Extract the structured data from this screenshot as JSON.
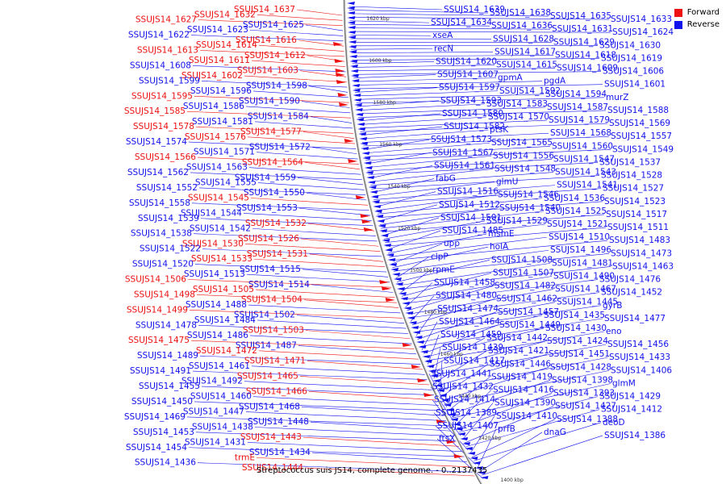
{
  "caption": "Streptococcus suis JS14, complete genome. - 0..2137435",
  "legend": {
    "forward_label": "Forward",
    "reverse_label": "Reverse",
    "forward_color": "#ee1111",
    "reverse_color": "#1111ee"
  },
  "ticks": [
    "1620 kbp",
    "1600 kbp",
    "1580 kbp",
    "1560 kbp",
    "1540 kbp",
    "1520 kbp",
    "1500 kbp",
    "1480 kbp",
    "1460 kbp",
    "1440 kbp",
    "1420 kbp",
    "1400 kbp"
  ],
  "left_labels": [
    {
      "t": "SSUJS14_1637",
      "s": "f"
    },
    {
      "t": "SSUJS14_1632",
      "s": "f"
    },
    {
      "t": "SSUJS14_1627",
      "s": "f"
    },
    {
      "t": "SSUJS14_1625",
      "s": "r"
    },
    {
      "t": "SSUJS14_1623",
      "s": "r"
    },
    {
      "t": "SSUJS14_1622",
      "s": "r"
    },
    {
      "t": "SSUJS14_1616",
      "s": "f"
    },
    {
      "t": "SSUJS14_1614",
      "s": "f"
    },
    {
      "t": "SSUJS14_1613",
      "s": "f"
    },
    {
      "t": "SSUJS14_1612",
      "s": "f"
    },
    {
      "t": "SSUJS14_1611",
      "s": "f"
    },
    {
      "t": "SSUJS14_1608",
      "s": "r"
    },
    {
      "t": "SSUJS14_1603",
      "s": "f"
    },
    {
      "t": "SSUJS14_1602",
      "s": "f"
    },
    {
      "t": "SSUJS14_1599",
      "s": "r"
    },
    {
      "t": "SSUJS14_1598",
      "s": "r"
    },
    {
      "t": "SSUJS14_1596",
      "s": "r"
    },
    {
      "t": "SSUJS14_1595",
      "s": "f"
    },
    {
      "t": "SSUJS14_1590",
      "s": "r"
    },
    {
      "t": "SSUJS14_1586",
      "s": "r"
    },
    {
      "t": "SSUJS14_1585",
      "s": "f"
    },
    {
      "t": "SSUJS14_1584",
      "s": "r"
    },
    {
      "t": "SSUJS14_1581",
      "s": "r"
    },
    {
      "t": "SSUJS14_1578",
      "s": "f"
    },
    {
      "t": "SSUJS14_1577",
      "s": "f"
    },
    {
      "t": "SSUJS14_1576",
      "s": "f"
    },
    {
      "t": "SSUJS14_1574",
      "s": "r"
    },
    {
      "t": "SSUJS14_1572",
      "s": "r"
    },
    {
      "t": "SSUJS14_1571",
      "s": "r"
    },
    {
      "t": "SSUJS14_1566",
      "s": "f"
    },
    {
      "t": "SSUJS14_1564",
      "s": "f"
    },
    {
      "t": "SSUJS14_1563",
      "s": "r"
    },
    {
      "t": "SSUJS14_1562",
      "s": "r"
    },
    {
      "t": "SSUJS14_1559",
      "s": "r"
    },
    {
      "t": "SSUJS14_1555",
      "s": "r"
    },
    {
      "t": "SSUJS14_1552",
      "s": "r"
    },
    {
      "t": "SSUJS14_1550",
      "s": "r"
    },
    {
      "t": "SSUJS14_1545",
      "s": "f"
    },
    {
      "t": "SSUJS14_1558",
      "s": "r"
    },
    {
      "t": "SSUJS14_1553",
      "s": "r"
    },
    {
      "t": "SSUJS14_1544",
      "s": "r"
    },
    {
      "t": "SSUJS14_1539",
      "s": "r"
    },
    {
      "t": "SSUJS14_1532",
      "s": "f"
    },
    {
      "t": "SSUJS14_1542",
      "s": "r"
    },
    {
      "t": "SSUJS14_1538",
      "s": "r"
    },
    {
      "t": "SSUJS14_1526",
      "s": "f"
    },
    {
      "t": "SSUJS14_1530",
      "s": "f"
    },
    {
      "t": "SSUJS14_1522",
      "s": "r"
    },
    {
      "t": "SSUJS14_1531",
      "s": "f"
    },
    {
      "t": "SSUJS14_1533",
      "s": "f"
    },
    {
      "t": "SSUJS14_1520",
      "s": "r"
    },
    {
      "t": "SSUJS14_1515",
      "s": "r"
    },
    {
      "t": "SSUJS14_1513",
      "s": "r"
    },
    {
      "t": "SSUJS14_1506",
      "s": "f"
    },
    {
      "t": "SSUJS14_1514",
      "s": "r"
    },
    {
      "t": "SSUJS14_1505",
      "s": "f"
    },
    {
      "t": "SSUJS14_1498",
      "s": "f"
    },
    {
      "t": "SSUJS14_1504",
      "s": "f"
    },
    {
      "t": "SSUJS14_1488",
      "s": "r"
    },
    {
      "t": "SSUJS14_1499",
      "s": "f"
    },
    {
      "t": "SSUJS14_1502",
      "s": "r"
    },
    {
      "t": "SSUJS14_1484",
      "s": "r"
    },
    {
      "t": "SSUJS14_1478",
      "s": "r"
    },
    {
      "t": "SSUJS14_1503",
      "s": "f"
    },
    {
      "t": "SSUJS14_1486",
      "s": "r"
    },
    {
      "t": "SSUJS14_1475",
      "s": "f"
    },
    {
      "t": "SSUJS14_1487",
      "s": "r"
    },
    {
      "t": "SSUJS14_1472",
      "s": "f"
    },
    {
      "t": "SSUJS14_1489",
      "s": "r"
    },
    {
      "t": "SSUJS14_1471",
      "s": "f"
    },
    {
      "t": "SSUJS14_1461",
      "s": "r"
    },
    {
      "t": "SSUJS14_1491",
      "s": "r"
    },
    {
      "t": "SSUJS14_1465",
      "s": "f"
    },
    {
      "t": "SSUJS14_1492",
      "s": "r"
    },
    {
      "t": "SSUJS14_1455",
      "s": "r"
    },
    {
      "t": "SSUJS14_1466",
      "s": "f"
    },
    {
      "t": "SSUJS14_1460",
      "s": "r"
    },
    {
      "t": "SSUJS14_1450",
      "s": "r"
    },
    {
      "t": "SSUJS14_1468",
      "s": "r"
    },
    {
      "t": "SSUJS14_1447",
      "s": "r"
    },
    {
      "t": "SSUJS14_1469",
      "s": "r"
    },
    {
      "t": "SSUJS14_1448",
      "s": "r"
    },
    {
      "t": "SSUJS14_1438",
      "s": "r"
    },
    {
      "t": "SSUJS14_1453",
      "s": "r"
    },
    {
      "t": "SSUJS14_1443",
      "s": "f"
    },
    {
      "t": "SSUJS14_1431",
      "s": "r"
    },
    {
      "t": "SSUJS14_1454",
      "s": "r"
    },
    {
      "t": "SSUJS14_1434",
      "s": "r"
    },
    {
      "t": "trmE",
      "s": "f"
    },
    {
      "t": "SSUJS14_1436",
      "s": "r"
    },
    {
      "t": "SSUJS14_1444",
      "s": "f"
    }
  ],
  "right_labels": [
    "SSUJS14_1639",
    "SSUJS14_1638",
    "SSUJS14_1635",
    "SSUJS14_1633",
    "SSUJS14_1634",
    "SSUJS14_1636",
    "SSUJS14_1631",
    "SSUJS14_1624",
    "xseA",
    "SSUJS14_1628",
    "SSUJS14_1629",
    "SSUJS14_1630",
    "recN",
    "SSUJS14_1617",
    "SSUJS14_1618",
    "SSUJS14_1619",
    "SSUJS14_1620",
    "SSUJS14_1615",
    "SSUJS14_1609",
    "SSUJS14_1606",
    "SSUJS14_1607",
    "gpmA",
    "pgdA",
    "SSUJS14_1601",
    "SSUJS14_1597",
    "SSUJS14_1592",
    "SSUJS14_1594",
    "murZ",
    "SSUJS14_1593",
    "SSUJS14_1583",
    "SSUJS14_1587",
    "SSUJS14_1588",
    "SSUJS14_1580",
    "SSUJS14_1570",
    "SSUJS14_1579",
    "SSUJS14_1569",
    "SSUJS14_1582",
    "ptsK",
    "SSUJS14_1568",
    "SSUJS14_1557",
    "SSUJS14_1573",
    "SSUJS14_1565",
    "SSUJS14_1560",
    "SSUJS14_1549",
    "SSUJS14_1567",
    "SSUJS14_1556",
    "SSUJS14_1547",
    "SSUJS14_1537",
    "SSUJS14_1561",
    "SSUJS14_1548",
    "SSUJS14_1543",
    "SSUJS14_1528",
    "fabG",
    "glmU",
    "SSUJS14_1541",
    "SSUJS14_1527",
    "SSUJS14_1516",
    "SSUJS14_1546",
    "SSUJS14_1536",
    "SSUJS14_1523",
    "SSUJS14_1512",
    "SSUJS14_1540",
    "SSUJS14_1525",
    "SSUJS14_1517",
    "SSUJS14_1501",
    "SSUJS14_1529",
    "SSUJS14_1521",
    "SSUJS14_1511",
    "SSUJS14_1485",
    "msmE",
    "SSUJS14_1510",
    "SSUJS14_1483",
    "upp",
    "holA",
    "SSUJS14_1496",
    "SSUJS14_1473",
    "clpP",
    "SSUJS14_1508",
    "SSUJS14_1481",
    "SSUJS14_1463",
    "rpmE",
    "SSUJS14_1507",
    "SSUJS14_1490",
    "SSUJS14_1476",
    "SSUJS14_1458",
    "SSUJS14_1482",
    "SSUJS14_1467",
    "SSUJS14_1452",
    "SSUJS14_1480",
    "SSUJS14_1462",
    "SSUJS14_1445",
    "gyrB",
    "SSUJS14_1474",
    "SSUJS14_1457",
    "SSUJS14_1435",
    "SSUJS14_1477",
    "SSUJS14_1464",
    "SSUJS14_1449",
    "SSUJS14_1430",
    "eno",
    "SSUJS14_1459",
    "SSUJS14_1442",
    "SSUJS14_1424",
    "SSUJS14_1456",
    "SSUJS14_1439",
    "SSUJS14_1421",
    "SSUJS14_1451",
    "SSUJS14_1433",
    "SSUJS14_1417",
    "SSUJS14_1446",
    "SSUJS14_1428",
    "SSUJS14_1406",
    "SSUJS14_1441",
    "SSUJS14_1419",
    "SSUJS14_1398",
    "glmM",
    "SSUJS14_1432",
    "SSUJS14_1416",
    "SSUJS14_1393",
    "SSUJS14_1429",
    "SSUJS14_1414",
    "SSUJS14_1390",
    "SSUJS14_1427",
    "SSUJS14_1412",
    "SSUJS14_1389",
    "SSUJS14_1410",
    "SSUJS14_1388",
    "deoD",
    "SSUJS14_1407",
    "prfB",
    "dnaG",
    "SSUJS14_1386",
    "ftsX"
  ]
}
